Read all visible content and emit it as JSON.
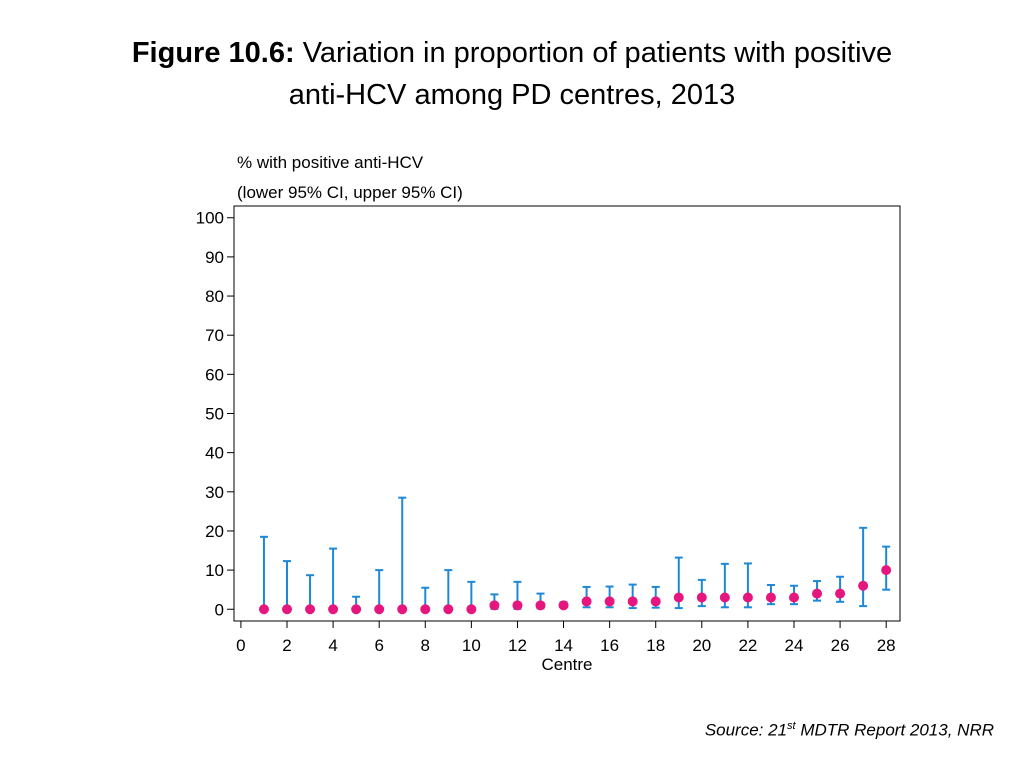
{
  "title": {
    "prefix": "Figure 10.6:",
    "line1": "Variation in proportion of patients with positive",
    "line2": "anti-HCV among PD centres, 2013"
  },
  "source": {
    "before": "Source: 21",
    "sup": "st",
    "after": " MDTR Report 2013, NRR"
  },
  "colors": {
    "point": "#e5177e",
    "ci": "#1e88d8",
    "axis": "#000000"
  },
  "chart_data": {
    "type": "scatter",
    "ylabel_line1": "% with positive anti-HCV",
    "ylabel_line2": "(lower 95% CI, upper 95% CI)",
    "xlabel": "Centre",
    "xlim": [
      -0.3,
      28.6
    ],
    "ylim": [
      -3,
      103
    ],
    "xticks": [
      0,
      2,
      4,
      6,
      8,
      10,
      12,
      14,
      16,
      18,
      20,
      22,
      24,
      26,
      28
    ],
    "yticks": [
      0,
      10,
      20,
      30,
      40,
      50,
      60,
      70,
      80,
      90,
      100
    ],
    "grid": false,
    "series": [
      {
        "points": [
          {
            "x": 1,
            "y": 0,
            "lower": 0,
            "upper": 18.5
          },
          {
            "x": 2,
            "y": 0,
            "lower": 0,
            "upper": 12.3
          },
          {
            "x": 3,
            "y": 0,
            "lower": 0,
            "upper": 8.7
          },
          {
            "x": 4,
            "y": 0,
            "lower": 0,
            "upper": 15.5
          },
          {
            "x": 5,
            "y": 0,
            "lower": 0,
            "upper": 3.2
          },
          {
            "x": 6,
            "y": 0,
            "lower": 0,
            "upper": 10.0
          },
          {
            "x": 7,
            "y": 0,
            "lower": 0,
            "upper": 28.5
          },
          {
            "x": 8,
            "y": 0,
            "lower": 0,
            "upper": 5.5
          },
          {
            "x": 9,
            "y": 0,
            "lower": 0,
            "upper": 10.0
          },
          {
            "x": 10,
            "y": 0,
            "lower": 0,
            "upper": 7.0
          },
          {
            "x": 11,
            "y": 1,
            "lower": 0.1,
            "upper": 3.8
          },
          {
            "x": 12,
            "y": 1,
            "lower": 0.1,
            "upper": 7.0
          },
          {
            "x": 13,
            "y": 1,
            "lower": 0.2,
            "upper": 4.0
          },
          {
            "x": 14,
            "y": 1,
            "lower": 0.5,
            "upper": 1.8
          },
          {
            "x": 15,
            "y": 2,
            "lower": 0.5,
            "upper": 5.7
          },
          {
            "x": 16,
            "y": 2,
            "lower": 0.5,
            "upper": 5.8
          },
          {
            "x": 17,
            "y": 2,
            "lower": 0.3,
            "upper": 6.3
          },
          {
            "x": 18,
            "y": 2,
            "lower": 0.4,
            "upper": 5.7
          },
          {
            "x": 19,
            "y": 3,
            "lower": 0.3,
            "upper": 13.2
          },
          {
            "x": 20,
            "y": 3,
            "lower": 0.8,
            "upper": 7.5
          },
          {
            "x": 21,
            "y": 3,
            "lower": 0.5,
            "upper": 11.6
          },
          {
            "x": 22,
            "y": 3,
            "lower": 0.5,
            "upper": 11.7
          },
          {
            "x": 23,
            "y": 3,
            "lower": 1.3,
            "upper": 6.2
          },
          {
            "x": 24,
            "y": 3,
            "lower": 1.3,
            "upper": 6.0
          },
          {
            "x": 25,
            "y": 4,
            "lower": 2.2,
            "upper": 7.2
          },
          {
            "x": 26,
            "y": 4,
            "lower": 1.9,
            "upper": 8.3
          },
          {
            "x": 27,
            "y": 6,
            "lower": 0.8,
            "upper": 20.8
          },
          {
            "x": 28,
            "y": 10,
            "lower": 5.0,
            "upper": 16.0
          }
        ]
      }
    ]
  }
}
